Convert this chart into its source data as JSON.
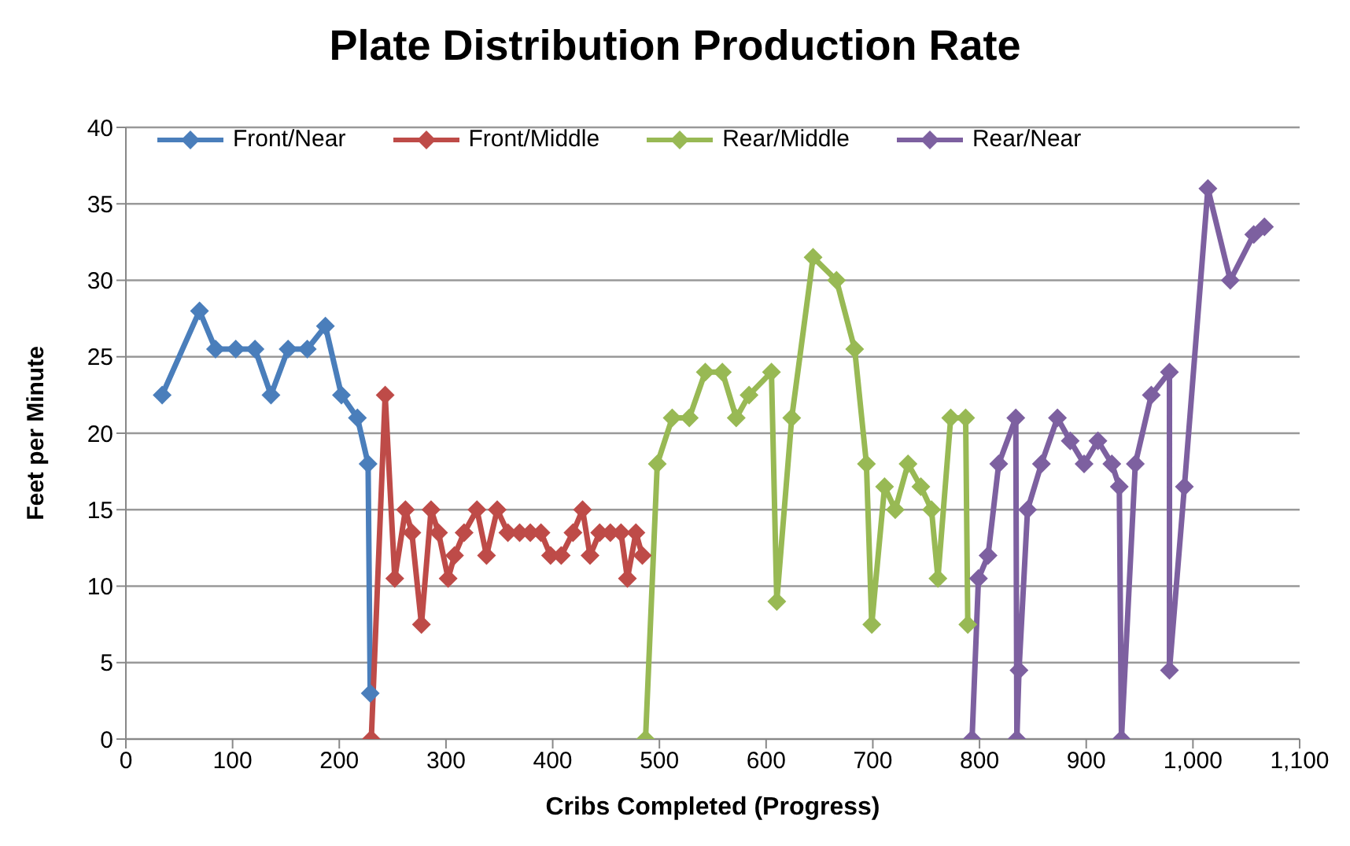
{
  "chart_data": {
    "type": "line",
    "title": "Plate Distribution Production Rate",
    "xlabel": "Cribs Completed (Progress)",
    "ylabel": "Feet per Minute",
    "xlim": [
      0,
      1100
    ],
    "xticks": [
      0,
      100,
      200,
      300,
      400,
      500,
      600,
      700,
      800,
      900,
      {
        "value": 1000,
        "label": "1,000"
      },
      {
        "value": 1100,
        "label": "1,100"
      }
    ],
    "ylim": [
      0,
      40
    ],
    "yticks": [
      0,
      5,
      10,
      15,
      20,
      25,
      30,
      35,
      40
    ],
    "grid": "y",
    "legend": "top",
    "marker": "diamond",
    "line_style": "solid",
    "series": [
      {
        "name": "Front/Near",
        "color": "#4a7ebb",
        "x": [
          34,
          69,
          84,
          103,
          121,
          136,
          152,
          170,
          187,
          202,
          217,
          227,
          229
        ],
        "values": [
          22.5,
          28,
          25.5,
          25.5,
          25.5,
          22.5,
          25.5,
          25.5,
          27,
          22.5,
          21,
          18,
          3
        ]
      },
      {
        "name": "Front/Middle",
        "color": "#be4b48",
        "x": [
          230,
          243,
          252,
          262,
          268,
          277,
          286,
          293,
          302,
          308,
          317,
          329,
          338,
          348,
          358,
          369,
          379,
          389,
          398,
          408,
          419,
          428,
          435,
          444,
          454,
          464,
          470,
          478,
          484
        ],
        "values": [
          0,
          22.5,
          10.5,
          15,
          13.5,
          7.5,
          15,
          13.5,
          10.5,
          12,
          13.5,
          15,
          12,
          15,
          13.5,
          13.5,
          13.5,
          13.5,
          12,
          12,
          13.5,
          15,
          12,
          13.5,
          13.5,
          13.5,
          10.5,
          13.5,
          12
        ]
      },
      {
        "name": "Rear/Middle",
        "color": "#98b954",
        "x": [
          487,
          498,
          512,
          528,
          543,
          559,
          572,
          584,
          605,
          610,
          624,
          644,
          666,
          683,
          694,
          699,
          711,
          721,
          733,
          745,
          755,
          761,
          773,
          787,
          789
        ],
        "values": [
          0,
          18,
          21,
          21,
          24,
          24,
          21,
          22.5,
          24,
          9,
          21,
          31.5,
          30,
          25.5,
          18,
          7.5,
          16.5,
          15,
          18,
          16.5,
          15,
          10.5,
          21,
          21,
          7.5
        ]
      },
      {
        "name": "Rear/Near",
        "color": "#7d60a0",
        "x": [
          793,
          799,
          808,
          818,
          834,
          835,
          837,
          845,
          858,
          873,
          885,
          898,
          911,
          924,
          931,
          933,
          946,
          961,
          978,
          978,
          992,
          1014,
          1035,
          1057,
          1067
        ],
        "values": [
          0,
          10.5,
          12,
          18,
          21,
          0,
          4.5,
          15,
          18,
          21,
          19.5,
          18,
          19.5,
          18,
          16.5,
          0,
          18,
          22.5,
          24,
          4.5,
          16.5,
          36,
          30,
          33,
          33.5
        ]
      }
    ]
  }
}
